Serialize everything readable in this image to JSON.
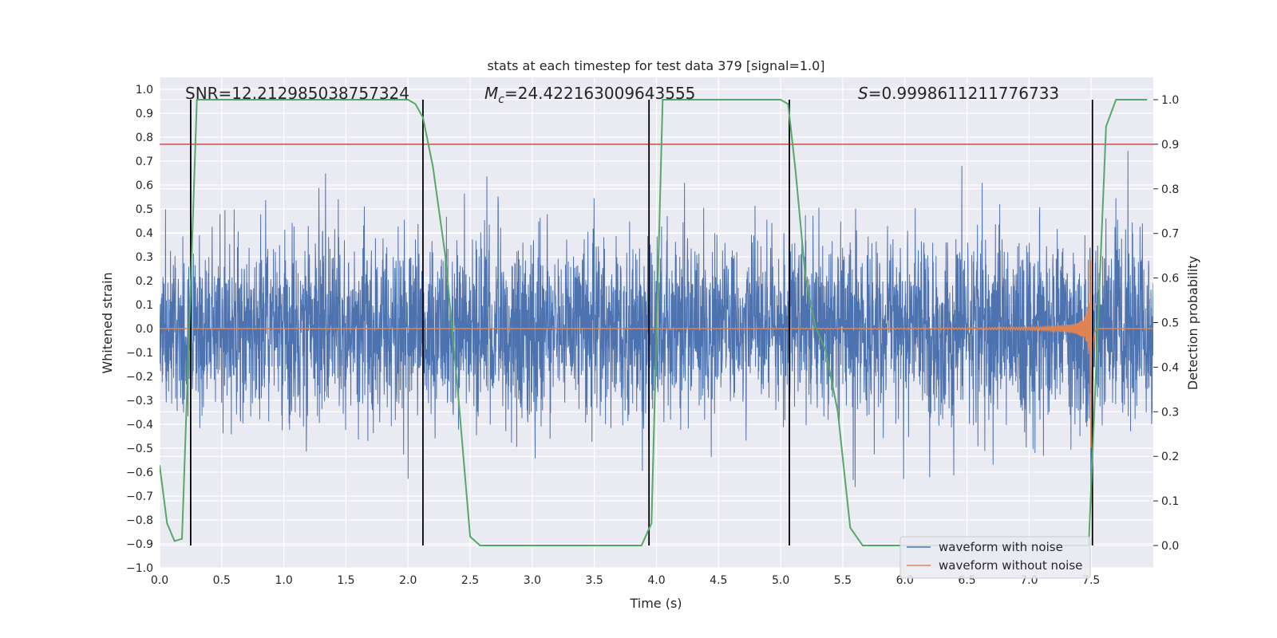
{
  "chart_data": {
    "type": "line",
    "title": "stats at each timestep for test data 379 [signal=1.0]",
    "xlabel": "Time (s)",
    "ylabel": "Whitened strain",
    "y2label": "Detection probability",
    "xlim": [
      0.0,
      8.0
    ],
    "ylim": [
      -1.0,
      1.05
    ],
    "y2lim": [
      -0.05,
      1.05
    ],
    "xticks": [
      0.0,
      0.5,
      1.0,
      1.5,
      2.0,
      2.5,
      3.0,
      3.5,
      4.0,
      4.5,
      5.0,
      5.5,
      6.0,
      6.5,
      7.0,
      7.5
    ],
    "xtick_labels": [
      "0.0",
      "0.5",
      "1.0",
      "1.5",
      "2.0",
      "2.5",
      "3.0",
      "3.5",
      "4.0",
      "4.5",
      "5.0",
      "5.5",
      "6.0",
      "6.5",
      "7.0",
      "7.5"
    ],
    "yticks": [
      -1.0,
      -0.9,
      -0.8,
      -0.7,
      -0.6,
      -0.5,
      -0.4,
      -0.3,
      -0.2,
      -0.1,
      0.0,
      0.1,
      0.2,
      0.3,
      0.4,
      0.5,
      0.6,
      0.7,
      0.8,
      0.9,
      1.0
    ],
    "ytick_labels": [
      "−1.0",
      "−0.9",
      "−0.8",
      "−0.7",
      "−0.6",
      "−0.5",
      "−0.4",
      "−0.3",
      "−0.2",
      "−0.1",
      "0.0",
      "0.1",
      "0.2",
      "0.3",
      "0.4",
      "0.5",
      "0.6",
      "0.7",
      "0.8",
      "0.9",
      "1.0"
    ],
    "y2ticks": [
      0.0,
      0.1,
      0.2,
      0.3,
      0.4,
      0.5,
      0.6,
      0.7,
      0.8,
      0.9,
      1.0
    ],
    "y2tick_labels": [
      "0.0",
      "0.1",
      "0.2",
      "0.3",
      "0.4",
      "0.5",
      "0.6",
      "0.7",
      "0.8",
      "0.9",
      "1.0"
    ],
    "annotations": {
      "snr": "SNR=12.212985038757324",
      "mc_symbol": "M",
      "mc_subscript": "c",
      "mc_value": "=24.422163009643555",
      "s_symbol": "S",
      "s_value": "=0.9998611211776733"
    },
    "vertical_lines_x": [
      0.25,
      2.12,
      3.94,
      5.07,
      7.51
    ],
    "threshold_probability": 0.9,
    "detection_probability": {
      "t": [
        0.0,
        0.06,
        0.12,
        0.18,
        0.24,
        0.3,
        0.4,
        1.0,
        2.0,
        2.06,
        2.12,
        2.2,
        2.3,
        2.4,
        2.5,
        2.58,
        3.0,
        3.6,
        3.88,
        3.96,
        4.05,
        4.5,
        5.0,
        5.06,
        5.12,
        5.2,
        5.28,
        5.36,
        5.46,
        5.56,
        5.66,
        6.0,
        7.0,
        7.48,
        7.54,
        7.62,
        7.7,
        7.95
      ],
      "p": [
        0.18,
        0.05,
        0.01,
        0.015,
        0.5,
        1.0,
        1.0,
        1.0,
        1.0,
        0.99,
        0.96,
        0.85,
        0.65,
        0.35,
        0.02,
        0.0,
        0.0,
        0.0,
        0.0,
        0.05,
        1.0,
        1.0,
        1.0,
        0.99,
        0.84,
        0.6,
        0.49,
        0.44,
        0.3,
        0.04,
        0.0,
        0.0,
        0.0,
        0.0,
        0.4,
        0.94,
        1.0,
        1.0
      ]
    },
    "series": [
      {
        "name": "waveform with noise",
        "color": "#4c72b0",
        "noise_std": 0.19,
        "duration_s": 8.0
      },
      {
        "name": "waveform without noise",
        "color": "#dd8452",
        "type": "chirp",
        "merger_time_s": 7.5
      }
    ],
    "probability_color": "#55a868",
    "threshold_color": "#c44e52"
  }
}
